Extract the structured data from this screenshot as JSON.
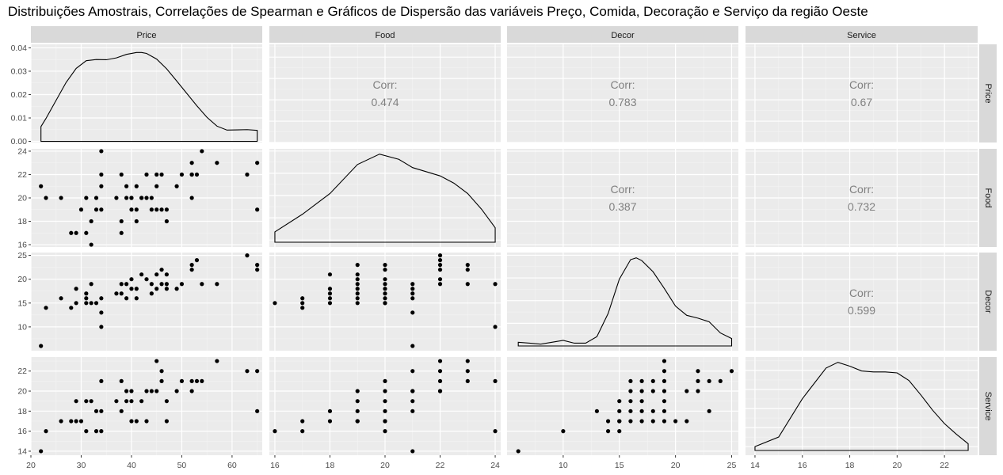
{
  "title": "Distribuições Amostrais, Correlações de Spearman e Gráficos de Dispersão das variáveis Preço, Comida, Decoração e Serviço da região Oeste",
  "colors": {
    "panel_bg": "#ebebeb",
    "grid_major": "#ffffff",
    "grid_minor": "#f4f4f4",
    "strip_bg": "#d9d9d9",
    "point": "#000000",
    "corr_text": "#808080"
  },
  "chart_data": {
    "type": "scatter",
    "variables": [
      "Price",
      "Food",
      "Decor",
      "Service"
    ],
    "axes": {
      "Price": {
        "range": [
          20,
          66
        ],
        "ticks": [
          20,
          30,
          40,
          50,
          60
        ],
        "density_ticks": [
          0.0,
          0.01,
          0.02,
          0.03,
          0.04
        ],
        "density_labels": [
          "0.00",
          "0.01",
          "0.02",
          "0.03",
          "0.04"
        ],
        "density_range": [
          -0.0005,
          0.0415
        ]
      },
      "Food": {
        "range": [
          15.8,
          24.2
        ],
        "ticks": [
          16,
          18,
          20,
          22,
          24
        ]
      },
      "Decor": {
        "range": [
          5,
          25.6
        ],
        "ticks": [
          10,
          15,
          20,
          25
        ]
      },
      "Service": {
        "range": [
          13.6,
          23.4
        ],
        "ticks": [
          14,
          16,
          18,
          20,
          22
        ]
      }
    },
    "correlations": [
      {
        "row": "Price",
        "col": "Food",
        "label": "Corr:",
        "value": "0.474"
      },
      {
        "row": "Price",
        "col": "Decor",
        "label": "Corr:",
        "value": "0.783"
      },
      {
        "row": "Price",
        "col": "Service",
        "label": "Corr:",
        "value": "0.67"
      },
      {
        "row": "Food",
        "col": "Decor",
        "label": "Corr:",
        "value": "0.387"
      },
      {
        "row": "Food",
        "col": "Service",
        "label": "Corr:",
        "value": "0.732"
      },
      {
        "row": "Decor",
        "col": "Service",
        "label": "Corr:",
        "value": "0.599"
      }
    ],
    "densities": {
      "Price": {
        "x": [
          22,
          23,
          25,
          27,
          29,
          31,
          33,
          35,
          37,
          39,
          41,
          42,
          43,
          45,
          47,
          49,
          51,
          53,
          55,
          57,
          59,
          61,
          63,
          65
        ],
        "y": [
          0.0063,
          0.0098,
          0.0175,
          0.0252,
          0.0312,
          0.0345,
          0.035,
          0.0349,
          0.0357,
          0.0372,
          0.038,
          0.038,
          0.0376,
          0.0352,
          0.031,
          0.0258,
          0.0205,
          0.0152,
          0.0103,
          0.0065,
          0.0048,
          0.0049,
          0.005,
          0.0047
        ]
      },
      "Food": {
        "x": [
          16,
          17,
          18,
          19,
          19.8,
          20.5,
          21,
          21.5,
          22,
          22.5,
          23,
          23.5,
          24
        ],
        "y": [
          0.1,
          0.27,
          0.47,
          0.75,
          0.85,
          0.8,
          0.72,
          0.68,
          0.64,
          0.57,
          0.47,
          0.32,
          0.14
        ]
      },
      "Decor": {
        "x": [
          6,
          7,
          8,
          9,
          10,
          11,
          12,
          13,
          14,
          15,
          16,
          16.5,
          17,
          18,
          19,
          20,
          21,
          22,
          23,
          24,
          25
        ],
        "y": [
          0.04,
          0.03,
          0.02,
          0.04,
          0.06,
          0.03,
          0.03,
          0.1,
          0.35,
          0.72,
          0.93,
          0.95,
          0.92,
          0.8,
          0.62,
          0.43,
          0.33,
          0.3,
          0.26,
          0.14,
          0.08
        ]
      },
      "Service": {
        "x": [
          14,
          15,
          16,
          17,
          17.5,
          18,
          18.5,
          19,
          19.5,
          20,
          20.5,
          21,
          21.5,
          22,
          22.5,
          23
        ],
        "y": [
          0.04,
          0.14,
          0.54,
          0.86,
          0.92,
          0.88,
          0.83,
          0.82,
          0.82,
          0.81,
          0.73,
          0.58,
          0.42,
          0.28,
          0.17,
          0.07
        ]
      }
    },
    "scatter": {
      "Food_vs_Price": {
        "x": [
          22,
          23,
          26,
          28,
          29,
          30,
          31,
          31,
          32,
          32,
          33,
          33,
          34,
          34,
          34,
          34,
          37,
          38,
          38,
          38,
          39,
          39,
          40,
          40,
          40,
          41,
          41,
          41,
          42,
          42,
          43,
          43,
          44,
          44,
          45,
          45,
          45,
          46,
          46,
          47,
          47,
          49,
          50,
          52,
          52,
          52,
          52,
          53,
          54,
          57,
          63,
          65,
          65
        ],
        "y": [
          21,
          20,
          20,
          17,
          17,
          19,
          17,
          20,
          16,
          18,
          19,
          20,
          22,
          21,
          19,
          24,
          20,
          18,
          17,
          22,
          21,
          20,
          19,
          20,
          20,
          19,
          18,
          21,
          20,
          20,
          20,
          22,
          20,
          19,
          22,
          19,
          21,
          22,
          19,
          19,
          18,
          21,
          22,
          22,
          23,
          22,
          20,
          22,
          24,
          23,
          22,
          23,
          19
        ]
      },
      "Decor_vs_Price": {
        "x": [
          22,
          23,
          26,
          28,
          29,
          29,
          31,
          31,
          31,
          32,
          32,
          33,
          34,
          34,
          34,
          37,
          38,
          38,
          39,
          39,
          40,
          40,
          41,
          41,
          42,
          43,
          44,
          44,
          45,
          45,
          46,
          46,
          47,
          47,
          47,
          49,
          50,
          52,
          52,
          53,
          54,
          57,
          63,
          65,
          65
        ],
        "y": [
          6,
          14,
          16,
          14,
          15,
          18,
          15,
          16,
          17,
          15,
          19,
          15,
          10,
          13,
          16,
          17,
          17,
          19,
          16,
          19,
          18,
          20,
          16,
          18,
          21,
          20,
          17,
          19,
          18,
          21,
          19,
          22,
          18,
          21,
          19,
          18,
          19,
          22,
          23,
          24,
          19,
          19,
          25,
          22,
          23
        ]
      },
      "Service_vs_Price": {
        "x": [
          22,
          23,
          26,
          28,
          29,
          29,
          30,
          31,
          31,
          32,
          33,
          33,
          34,
          34,
          34,
          37,
          38,
          38,
          39,
          39,
          40,
          40,
          40,
          41,
          42,
          43,
          43,
          44,
          45,
          45,
          46,
          46,
          47,
          47,
          49,
          50,
          52,
          52,
          53,
          54,
          57,
          63,
          65,
          65
        ],
        "y": [
          14,
          16,
          17,
          17,
          17,
          19,
          17,
          16,
          19,
          19,
          18,
          16,
          18,
          21,
          16,
          19,
          18,
          21,
          20,
          19,
          19,
          17,
          20,
          17,
          19,
          17,
          20,
          20,
          20,
          23,
          21,
          22,
          19,
          17,
          20,
          21,
          20,
          21,
          21,
          21,
          23,
          22,
          22,
          18
        ]
      },
      "Decor_vs_Food": {
        "x": [
          16,
          17,
          17,
          17,
          18,
          18,
          18,
          18,
          18,
          19,
          19,
          19,
          19,
          19,
          19,
          19,
          19,
          20,
          20,
          20,
          20,
          20,
          20,
          20,
          20,
          20,
          21,
          21,
          21,
          21,
          21,
          21,
          22,
          22,
          22,
          22,
          22,
          22,
          23,
          23,
          23,
          24,
          24
        ],
        "y": [
          15,
          14,
          15,
          16,
          15,
          16,
          17,
          18,
          21,
          15,
          16,
          17,
          18,
          19,
          20,
          21,
          23,
          15,
          16,
          17,
          18,
          19,
          20,
          23,
          22,
          15,
          6,
          13,
          16,
          17,
          18,
          19,
          19,
          20,
          22,
          23,
          24,
          25,
          19,
          22,
          23,
          19,
          10
        ]
      },
      "Service_vs_Food": {
        "x": [
          16,
          17,
          17,
          18,
          18,
          19,
          19,
          19,
          19,
          19,
          20,
          20,
          20,
          20,
          20,
          20,
          20,
          21,
          21,
          21,
          21,
          21,
          21,
          22,
          22,
          22,
          22,
          22,
          23,
          23,
          23,
          24,
          24
        ],
        "y": [
          16,
          16,
          17,
          17,
          18,
          17,
          17,
          18,
          19,
          20,
          16,
          17,
          18,
          19,
          20,
          21,
          17,
          14,
          18,
          19,
          20,
          20,
          22,
          20,
          20,
          21,
          22,
          23,
          21,
          22,
          23,
          21,
          16
        ]
      },
      "Service_vs_Decor": {
        "x": [
          6,
          10,
          13,
          14,
          14,
          15,
          15,
          15,
          15,
          15,
          16,
          16,
          16,
          16,
          16,
          17,
          17,
          17,
          17,
          17,
          18,
          18,
          18,
          18,
          19,
          19,
          19,
          19,
          19,
          19,
          19,
          20,
          21,
          21,
          22,
          22,
          22,
          23,
          23,
          24,
          25
        ],
        "y": [
          14,
          16,
          18,
          16,
          17,
          16,
          17,
          18,
          19,
          17,
          17,
          18,
          19,
          20,
          21,
          17,
          18,
          19,
          20,
          21,
          17,
          18,
          20,
          21,
          17,
          18,
          19,
          20,
          21,
          22,
          23,
          17,
          17,
          20,
          20,
          21,
          22,
          18,
          21,
          21,
          22
        ]
      }
    }
  }
}
